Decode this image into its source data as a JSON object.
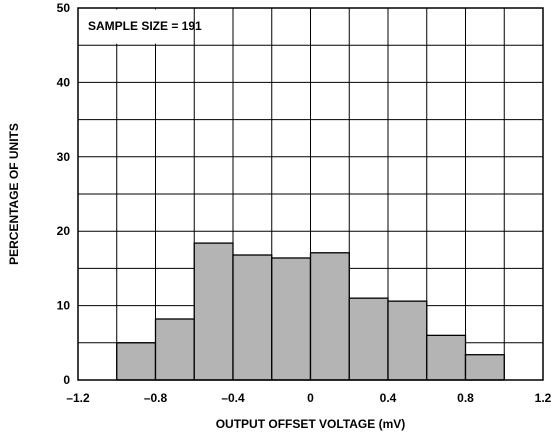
{
  "chart_data": {
    "type": "bar",
    "bin_edges": [
      -1.0,
      -0.8,
      -0.6,
      -0.4,
      -0.2,
      0.0,
      0.2,
      0.4,
      0.6,
      0.8,
      1.0
    ],
    "values": [
      5.0,
      8.2,
      18.4,
      16.8,
      16.4,
      17.1,
      11.0,
      10.6,
      6.0,
      3.4
    ],
    "xlabel": "OUTPUT OFFSET VOLTAGE (mV)",
    "ylabel": "PERCENTAGE OF UNITS",
    "xlim": [
      -1.2,
      1.2
    ],
    "ylim": [
      0,
      50
    ],
    "x_ticks": [
      -1.2,
      -0.8,
      -0.4,
      0,
      0.4,
      0.8,
      1.2
    ],
    "x_tick_labels": [
      "–1.2",
      "–0.8",
      "–0.4",
      "0",
      "0.4",
      "0.8",
      "1.2"
    ],
    "y_ticks": [
      0,
      10,
      20,
      30,
      40,
      50
    ],
    "y_tick_labels": [
      "0",
      "10",
      "20",
      "30",
      "40",
      "50"
    ],
    "annotation": "SAMPLE SIZE = 191",
    "grid": true,
    "bar_color": "#b4b4b4"
  }
}
